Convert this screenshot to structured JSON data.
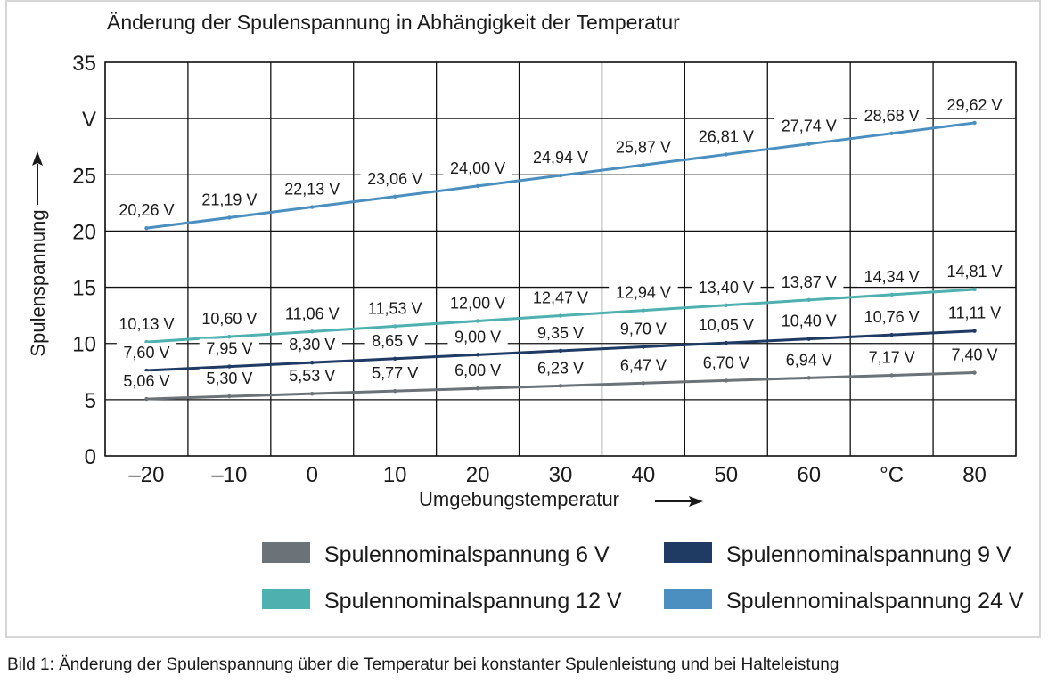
{
  "caption": "Bild 1: Änderung der Spulenspannung über die Temperatur bei konstanter Spulenleistung und bei Halteleistung",
  "chart_data": {
    "type": "line",
    "title": "Änderung der Spulenspannung in Abhängigkeit der Temperatur",
    "xlabel": "Umgebungstemperatur",
    "ylabel": "Spulenspannung",
    "x_unit": "°C",
    "y_unit": "V",
    "xlim": [
      -25,
      85
    ],
    "ylim": [
      0,
      35
    ],
    "x_ticks": [
      {
        "value": -20,
        "label": "–20"
      },
      {
        "value": -10,
        "label": "–10"
      },
      {
        "value": 0,
        "label": "0"
      },
      {
        "value": 10,
        "label": "10"
      },
      {
        "value": 20,
        "label": "20"
      },
      {
        "value": 30,
        "label": "30"
      },
      {
        "value": 40,
        "label": "40"
      },
      {
        "value": 50,
        "label": "50"
      },
      {
        "value": 60,
        "label": "60"
      },
      {
        "value": 70,
        "label": "°C"
      },
      {
        "value": 80,
        "label": "80"
      }
    ],
    "y_ticks": [
      {
        "value": 0,
        "label": "0"
      },
      {
        "value": 5,
        "label": "5"
      },
      {
        "value": 10,
        "label": "10"
      },
      {
        "value": 15,
        "label": "15"
      },
      {
        "value": 20,
        "label": "20"
      },
      {
        "value": 25,
        "label": "25"
      },
      {
        "value": 30,
        "label": "V"
      },
      {
        "value": 35,
        "label": "35"
      }
    ],
    "grid": true,
    "legend_position": "bottom",
    "x": [
      -20,
      -10,
      0,
      10,
      20,
      30,
      40,
      50,
      60,
      70,
      80
    ],
    "series": [
      {
        "name": "Spulennominalspannung 6 V",
        "color": "#6b7278",
        "values": [
          5.06,
          5.3,
          5.53,
          5.77,
          6.0,
          6.23,
          6.47,
          6.7,
          6.94,
          7.17,
          7.4
        ],
        "labels": [
          "5,06 V",
          "5,30 V",
          "5,53 V",
          "5,77 V",
          "6,00 V",
          "6,23 V",
          "6,47 V",
          "6,70 V",
          "6,94 V",
          "7,17 V",
          "7,40 V"
        ]
      },
      {
        "name": "Spulennominalspannung 9 V",
        "color": "#1f3a63",
        "values": [
          7.6,
          7.95,
          8.3,
          8.65,
          9.0,
          9.35,
          9.7,
          10.05,
          10.4,
          10.76,
          11.11
        ],
        "labels": [
          "7,60 V",
          "7,95 V",
          "8,30 V",
          "8,65 V",
          "9,00 V",
          "9,35 V",
          "9,70 V",
          "10,05 V",
          "10,40 V",
          "10,76 V",
          "11,11 V"
        ]
      },
      {
        "name": "Spulennominalspannung 12 V",
        "color": "#4fb0b0",
        "values": [
          10.13,
          10.6,
          11.06,
          11.53,
          12.0,
          12.47,
          12.94,
          13.4,
          13.87,
          14.34,
          14.81
        ],
        "labels": [
          "10,13 V",
          "10,60 V",
          "11,06 V",
          "11,53 V",
          "12,00 V",
          "12,47 V",
          "12,94 V",
          "13,40 V",
          "13,87 V",
          "14,34 V",
          "14,81 V"
        ]
      },
      {
        "name": "Spulennominalspannung 24 V",
        "color": "#4a8fbf",
        "values": [
          20.26,
          21.19,
          22.13,
          23.06,
          24.0,
          24.94,
          25.87,
          26.81,
          27.74,
          28.68,
          29.62
        ],
        "labels": [
          "20,26 V",
          "21,19 V",
          "22,13 V",
          "23,06 V",
          "24,00 V",
          "24,94 V",
          "25,87 V",
          "26,81 V",
          "27,74 V",
          "28,68 V",
          "29,62 V"
        ]
      }
    ]
  }
}
